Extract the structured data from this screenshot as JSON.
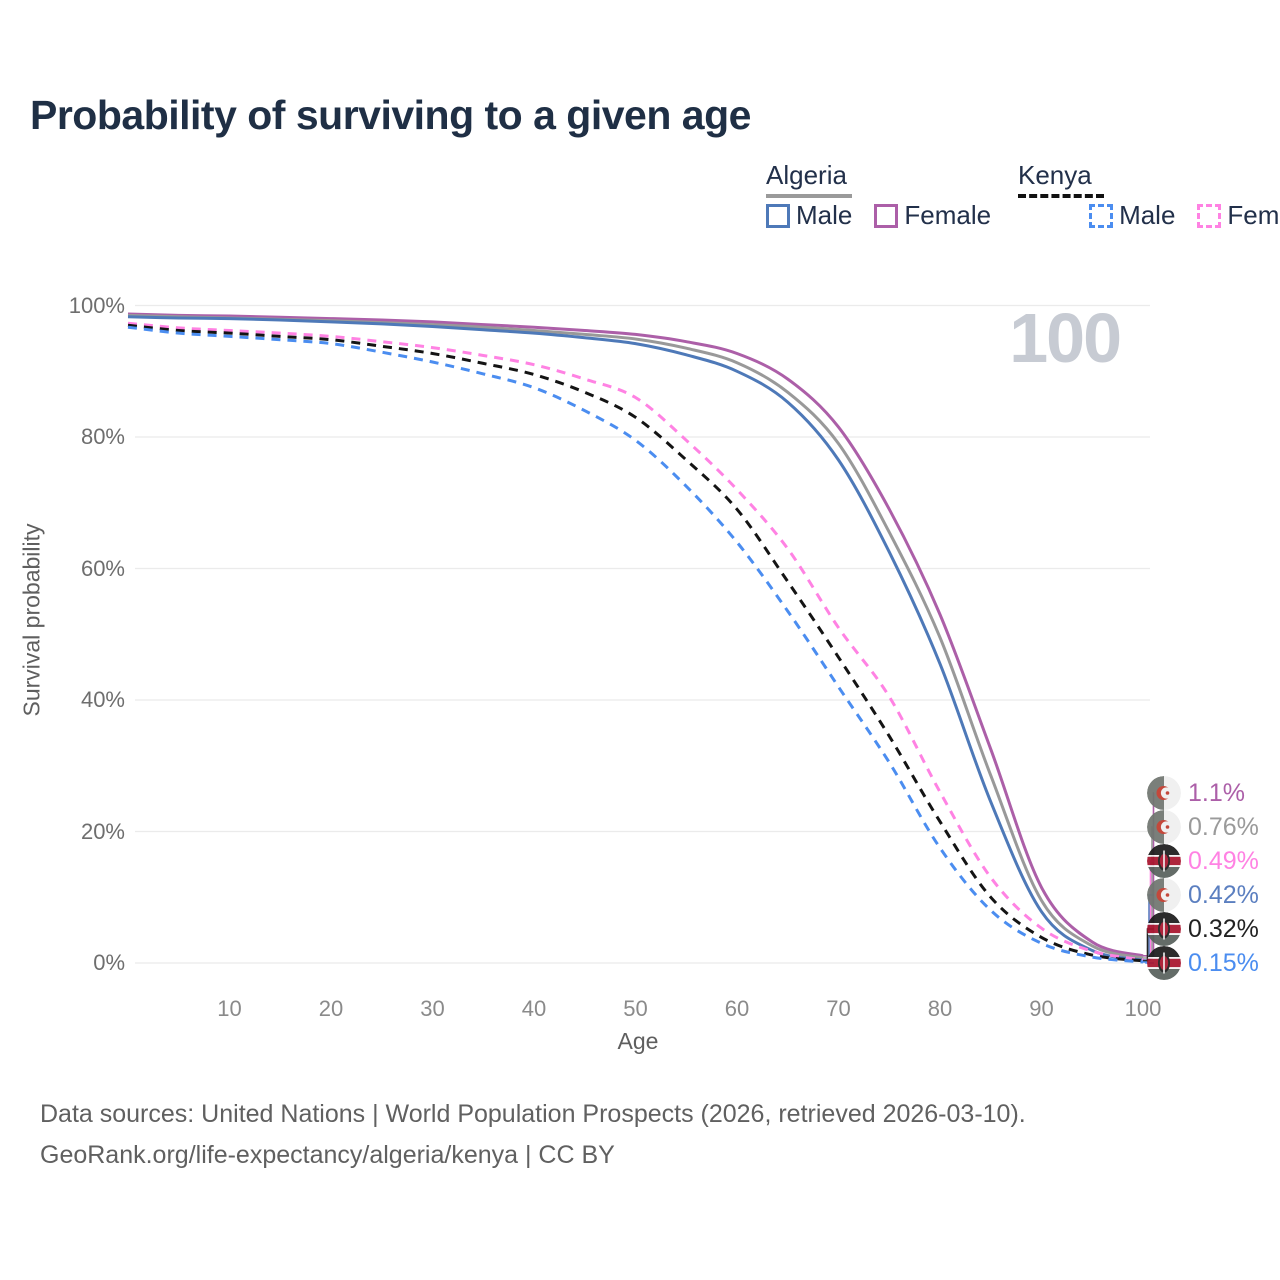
{
  "page": {
    "title": "Probability of surviving to a given age"
  },
  "legend": {
    "groups": [
      {
        "name": "Algeria",
        "line_style": "solid",
        "line_color": "#9a9a9a",
        "items": [
          {
            "label": "Male",
            "color": "#4e79b8",
            "dashed": false
          },
          {
            "label": "Female",
            "color": "#ac5fa8",
            "dashed": false
          }
        ]
      },
      {
        "name": "Kenya",
        "line_style": "dashed",
        "line_color": "#111111",
        "items": [
          {
            "label": "Male",
            "color": "#4b8df0",
            "dashed": true
          },
          {
            "label": "Female",
            "color": "#ff82e3",
            "dashed": true
          }
        ]
      }
    ]
  },
  "watermark": "100",
  "footer": {
    "line1": "Data sources: United Nations | World Population Prospects (2026, retrieved 2026-03-10).",
    "line2": "GeoRank.org/life-expectancy/algeria/kenya | CC BY"
  },
  "chart_data": {
    "type": "line",
    "title": "Probability of surviving to a given age",
    "xlabel": "Age",
    "ylabel": "Survival probability",
    "xlim": [
      0,
      100
    ],
    "ylim": [
      0,
      100
    ],
    "xticks": [
      10,
      20,
      30,
      40,
      50,
      60,
      70,
      80,
      90,
      100
    ],
    "yticks": [
      0,
      20,
      40,
      60,
      80,
      100
    ],
    "ytick_format": "percent",
    "grid": "horizontal",
    "legend_position": "top-right",
    "x": [
      0,
      5,
      10,
      15,
      20,
      25,
      30,
      35,
      40,
      45,
      50,
      55,
      60,
      65,
      70,
      75,
      80,
      85,
      90,
      95,
      100
    ],
    "series": [
      {
        "name": "Algeria Female",
        "country": "Algeria",
        "sex": "Female",
        "style": "solid",
        "color": "#ac5fa8",
        "values": [
          98.7,
          98.5,
          98.4,
          98.2,
          98.0,
          97.8,
          97.5,
          97.1,
          96.7,
          96.2,
          95.6,
          94.5,
          92.7,
          88.8,
          81.5,
          69.0,
          53.0,
          32.5,
          11.5,
          3.2,
          1.1
        ]
      },
      {
        "name": "Algeria Both sexes",
        "country": "Algeria",
        "sex": "All",
        "style": "solid",
        "color": "#999999",
        "values": [
          98.5,
          98.3,
          98.1,
          97.9,
          97.7,
          97.4,
          97.1,
          96.7,
          96.2,
          95.6,
          94.9,
          93.5,
          91.3,
          86.8,
          79.0,
          65.5,
          49.5,
          28.5,
          9.5,
          2.6,
          0.76
        ]
      },
      {
        "name": "Algeria Male",
        "country": "Algeria",
        "sex": "Male",
        "style": "solid",
        "color": "#4e79b8",
        "values": [
          98.3,
          98.1,
          98.0,
          97.8,
          97.5,
          97.2,
          96.8,
          96.3,
          95.8,
          95.1,
          94.2,
          92.5,
          90.0,
          85.3,
          76.5,
          62.5,
          45.5,
          24.5,
          7.8,
          1.9,
          0.42
        ]
      },
      {
        "name": "Kenya Female",
        "country": "Kenya",
        "sex": "Female",
        "style": "dashed",
        "color": "#ff82e3",
        "values": [
          97.3,
          96.6,
          96.2,
          95.8,
          95.3,
          94.5,
          93.6,
          92.4,
          91.0,
          88.8,
          86.0,
          79.5,
          72.0,
          63.0,
          51.0,
          40.5,
          26.0,
          13.0,
          5.3,
          1.8,
          0.49
        ]
      },
      {
        "name": "Kenya Both sexes",
        "country": "Kenya",
        "sex": "All",
        "style": "dashed",
        "color": "#141414",
        "values": [
          97.0,
          96.2,
          95.8,
          95.3,
          94.8,
          93.8,
          92.7,
          91.2,
          89.5,
          86.8,
          83.0,
          76.5,
          69.0,
          58.0,
          46.5,
          34.5,
          21.5,
          10.0,
          3.9,
          1.2,
          0.32
        ]
      },
      {
        "name": "Kenya Male",
        "country": "Kenya",
        "sex": "Male",
        "style": "dashed",
        "color": "#4b8df0",
        "values": [
          96.7,
          95.8,
          95.3,
          94.8,
          94.2,
          92.9,
          91.4,
          89.6,
          87.5,
          84.0,
          79.5,
          72.5,
          64.0,
          53.5,
          42.0,
          30.5,
          17.5,
          8.0,
          3.0,
          0.9,
          0.15
        ]
      }
    ],
    "end_labels": [
      {
        "text": "1.1%",
        "value": 1.1,
        "color": "#ac5fa8",
        "country": "Algeria",
        "series": "Algeria Female"
      },
      {
        "text": "0.76%",
        "value": 0.76,
        "color": "#9a9a9a",
        "country": "Algeria",
        "series": "Algeria Both sexes"
      },
      {
        "text": "0.49%",
        "value": 0.49,
        "color": "#ff82e3",
        "country": "Kenya",
        "series": "Kenya Female"
      },
      {
        "text": "0.42%",
        "value": 0.42,
        "color": "#5b7fc0",
        "country": "Algeria",
        "series": "Algeria Male"
      },
      {
        "text": "0.32%",
        "value": 0.32,
        "color": "#222222",
        "country": "Kenya",
        "series": "Kenya Both sexes"
      },
      {
        "text": "0.15%",
        "value": 0.15,
        "color": "#4b8df0",
        "country": "Kenya",
        "series": "Kenya Male"
      }
    ],
    "annotations": [
      {
        "text": "100",
        "role": "watermark",
        "position": "top-right"
      }
    ]
  }
}
